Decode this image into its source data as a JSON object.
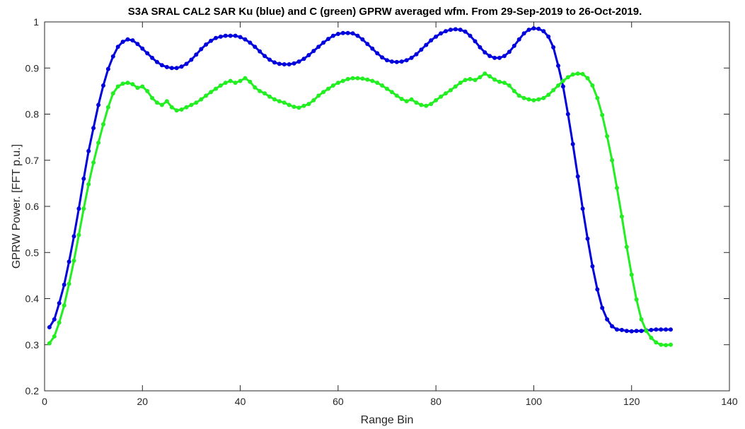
{
  "chart_data": {
    "type": "line",
    "title": "S3A SRAL CAL2 SAR Ku (blue) and C (green) GPRW averaged wfm. From 29-Sep-2019 to 26-Oct-2019.",
    "xlabel": "Range Bin",
    "ylabel": "GPRW Power. [FFT p.u.]",
    "xlim": [
      0,
      140
    ],
    "ylim": [
      0.2,
      1.0
    ],
    "xticks": [
      0,
      20,
      40,
      60,
      80,
      100,
      120,
      140
    ],
    "yticks": [
      0.2,
      0.3,
      0.4,
      0.5,
      0.6,
      0.7,
      0.8,
      0.9,
      1.0
    ],
    "xtick_labels": [
      "0",
      "20",
      "40",
      "60",
      "80",
      "100",
      "120",
      "140"
    ],
    "ytick_labels": [
      "0.2",
      "0.3",
      "0.4",
      "0.5",
      "0.6",
      "0.7",
      "0.8",
      "0.9",
      "1"
    ],
    "grid": false,
    "series": [
      {
        "color": "#0000dd",
        "x": [
          1,
          2,
          3,
          4,
          5,
          6,
          7,
          8,
          9,
          10,
          11,
          12,
          13,
          14,
          15,
          16,
          17,
          18,
          19,
          20,
          21,
          22,
          23,
          24,
          25,
          26,
          27,
          28,
          29,
          30,
          31,
          32,
          33,
          34,
          35,
          36,
          37,
          38,
          39,
          40,
          41,
          42,
          43,
          44,
          45,
          46,
          47,
          48,
          49,
          50,
          51,
          52,
          53,
          54,
          55,
          56,
          57,
          58,
          59,
          60,
          61,
          62,
          63,
          64,
          65,
          66,
          67,
          68,
          69,
          70,
          71,
          72,
          73,
          74,
          75,
          76,
          77,
          78,
          79,
          80,
          81,
          82,
          83,
          84,
          85,
          86,
          87,
          88,
          89,
          90,
          91,
          92,
          93,
          94,
          95,
          96,
          97,
          98,
          99,
          100,
          101,
          102,
          103,
          104,
          105,
          106,
          107,
          108,
          109,
          110,
          111,
          112,
          113,
          114,
          115,
          116,
          117,
          118,
          119,
          120,
          121,
          122,
          123,
          124,
          125,
          126,
          127,
          128
        ],
        "y": [
          0.338,
          0.355,
          0.39,
          0.43,
          0.48,
          0.535,
          0.595,
          0.66,
          0.72,
          0.77,
          0.82,
          0.862,
          0.898,
          0.925,
          0.946,
          0.957,
          0.962,
          0.96,
          0.952,
          0.942,
          0.932,
          0.922,
          0.913,
          0.906,
          0.902,
          0.9,
          0.9,
          0.903,
          0.909,
          0.918,
          0.929,
          0.941,
          0.951,
          0.959,
          0.965,
          0.968,
          0.97,
          0.97,
          0.97,
          0.967,
          0.962,
          0.955,
          0.946,
          0.936,
          0.926,
          0.918,
          0.912,
          0.909,
          0.908,
          0.908,
          0.91,
          0.914,
          0.92,
          0.928,
          0.937,
          0.946,
          0.955,
          0.963,
          0.97,
          0.974,
          0.976,
          0.976,
          0.975,
          0.97,
          0.962,
          0.952,
          0.942,
          0.932,
          0.923,
          0.917,
          0.914,
          0.913,
          0.914,
          0.917,
          0.922,
          0.93,
          0.94,
          0.95,
          0.96,
          0.968,
          0.975,
          0.98,
          0.983,
          0.984,
          0.983,
          0.979,
          0.97,
          0.958,
          0.945,
          0.934,
          0.926,
          0.922,
          0.922,
          0.926,
          0.935,
          0.948,
          0.962,
          0.975,
          0.983,
          0.986,
          0.985,
          0.98,
          0.968,
          0.945,
          0.905,
          0.86,
          0.8,
          0.735,
          0.665,
          0.595,
          0.53,
          0.47,
          0.42,
          0.38,
          0.355,
          0.34,
          0.333,
          0.332,
          0.33,
          0.329,
          0.33,
          0.33,
          0.331,
          0.332,
          0.333,
          0.333,
          0.333,
          0.333
        ]
      },
      {
        "color": "#22ee22",
        "x": [
          1,
          2,
          3,
          4,
          5,
          6,
          7,
          8,
          9,
          10,
          11,
          12,
          13,
          14,
          15,
          16,
          17,
          18,
          19,
          20,
          21,
          22,
          23,
          24,
          25,
          26,
          27,
          28,
          29,
          30,
          31,
          32,
          33,
          34,
          35,
          36,
          37,
          38,
          39,
          40,
          41,
          42,
          43,
          44,
          45,
          46,
          47,
          48,
          49,
          50,
          51,
          52,
          53,
          54,
          55,
          56,
          57,
          58,
          59,
          60,
          61,
          62,
          63,
          64,
          65,
          66,
          67,
          68,
          69,
          70,
          71,
          72,
          73,
          74,
          75,
          76,
          77,
          78,
          79,
          80,
          81,
          82,
          83,
          84,
          85,
          86,
          87,
          88,
          89,
          90,
          91,
          92,
          93,
          94,
          95,
          96,
          97,
          98,
          99,
          100,
          101,
          102,
          103,
          104,
          105,
          106,
          107,
          108,
          109,
          110,
          111,
          112,
          113,
          114,
          115,
          116,
          117,
          118,
          119,
          120,
          121,
          122,
          123,
          124,
          125,
          126,
          127,
          128
        ],
        "y": [
          0.303,
          0.318,
          0.348,
          0.385,
          0.432,
          0.482,
          0.538,
          0.595,
          0.648,
          0.695,
          0.738,
          0.778,
          0.815,
          0.845,
          0.86,
          0.866,
          0.868,
          0.865,
          0.857,
          0.86,
          0.85,
          0.835,
          0.825,
          0.82,
          0.828,
          0.815,
          0.808,
          0.81,
          0.815,
          0.82,
          0.825,
          0.832,
          0.84,
          0.848,
          0.855,
          0.862,
          0.868,
          0.872,
          0.868,
          0.872,
          0.878,
          0.87,
          0.858,
          0.85,
          0.845,
          0.838,
          0.832,
          0.828,
          0.825,
          0.82,
          0.816,
          0.814,
          0.818,
          0.822,
          0.83,
          0.84,
          0.848,
          0.855,
          0.862,
          0.868,
          0.872,
          0.876,
          0.878,
          0.878,
          0.877,
          0.875,
          0.872,
          0.868,
          0.862,
          0.855,
          0.848,
          0.84,
          0.833,
          0.828,
          0.832,
          0.825,
          0.82,
          0.818,
          0.822,
          0.83,
          0.838,
          0.845,
          0.852,
          0.86,
          0.868,
          0.874,
          0.876,
          0.874,
          0.88,
          0.888,
          0.882,
          0.875,
          0.87,
          0.868,
          0.862,
          0.85,
          0.84,
          0.835,
          0.832,
          0.83,
          0.832,
          0.835,
          0.842,
          0.852,
          0.862,
          0.872,
          0.88,
          0.886,
          0.888,
          0.887,
          0.878,
          0.862,
          0.835,
          0.798,
          0.752,
          0.7,
          0.64,
          0.578,
          0.512,
          0.452,
          0.398,
          0.355,
          0.33,
          0.315,
          0.305,
          0.3,
          0.299,
          0.3
        ]
      }
    ]
  }
}
